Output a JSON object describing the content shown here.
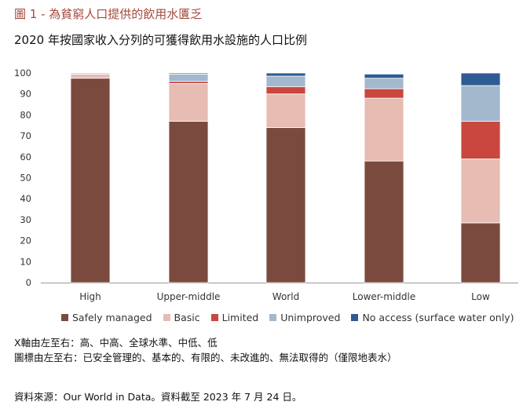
{
  "figure_title": "圖 1 - 為貧窮人口提供的飲用水匱乏",
  "chart_data": {
    "type": "bar",
    "stacked": true,
    "title": "2020 年按國家收入分列的可獲得飲用水設施的人口比例",
    "xlabel": "",
    "ylabel": "",
    "ylim": [
      0,
      100
    ],
    "yticks": [
      0,
      10,
      20,
      30,
      40,
      50,
      60,
      70,
      80,
      90,
      100
    ],
    "grid": false,
    "legend_position": "bottom",
    "categories": [
      "High",
      "Upper-middle",
      "World",
      "Lower-middle",
      "Low"
    ],
    "series": [
      {
        "name": "Safely managed",
        "color": "#7b4a3e",
        "values": [
          97.5,
          77,
          74,
          58,
          28.5
        ]
      },
      {
        "name": "Basic",
        "color": "#e6bcb3",
        "values": [
          2,
          18,
          16,
          30,
          30.5
        ]
      },
      {
        "name": "Limited",
        "color": "#c9473f",
        "values": [
          0,
          1,
          3.5,
          4.5,
          18
        ]
      },
      {
        "name": "Unimproved",
        "color": "#a3b8cc",
        "values": [
          0.5,
          3.5,
          5,
          5,
          17
        ]
      },
      {
        "name": "No access (surface water only)",
        "color": "#2f5b94",
        "values": [
          0,
          0.5,
          1.5,
          2,
          6
        ]
      }
    ]
  },
  "notes": {
    "line1": "X軸由左至右：高、中高、全球水準、中低、低",
    "line2": "圖標由左至右：已安全管理的、基本的、有限的、未改進的、無法取得的（僅限地表水）"
  },
  "source": "資料來源：Our World in Data。資料截至 2023 年 7 月 24 日。"
}
